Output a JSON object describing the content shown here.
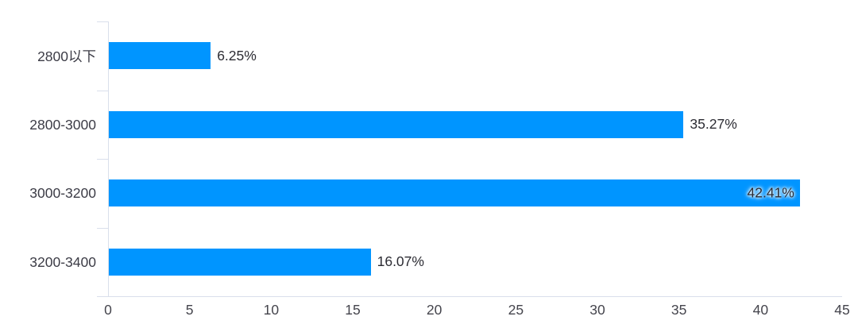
{
  "chart_data": {
    "type": "bar",
    "orientation": "horizontal",
    "title": "",
    "categories": [
      "2800以下",
      "2800-3000",
      "3000-3200",
      "3200-3400"
    ],
    "series": [
      {
        "name": "占比(%)",
        "values": [
          6.25,
          35.27,
          42.41,
          16.07
        ],
        "data_labels": [
          "6.25%",
          "35.27%",
          "42.41%",
          "16.07%"
        ],
        "label_placement": [
          "outside-end",
          "outside-end",
          "inside-end",
          "outside-end"
        ]
      }
    ],
    "xlabel": "",
    "ylabel": "",
    "xlim": [
      0,
      45
    ],
    "x_ticks": [
      0,
      5,
      10,
      15,
      20,
      25,
      30,
      35,
      40,
      45
    ],
    "grid": false,
    "legend_position": "none",
    "colors": {
      "bar": "#0095ff",
      "axis_line": "#d9dfeb",
      "data_label_text": "#2c2c33",
      "category_label_text": "#3c3c46",
      "axis_tick_text": "#45454d",
      "background": "#ffffff"
    }
  }
}
